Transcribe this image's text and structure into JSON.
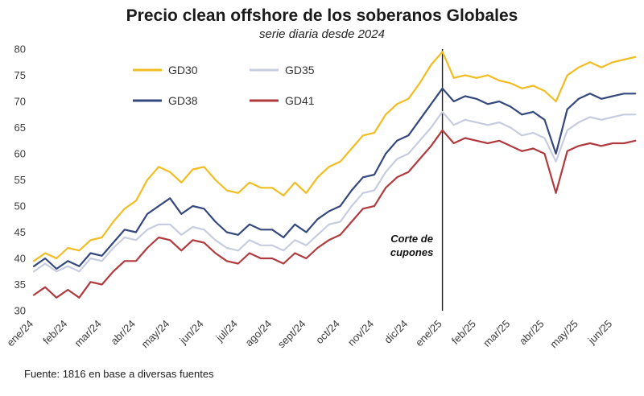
{
  "source_note": "Fuente: 1816 en base a diversas fuentes",
  "chart_data": {
    "type": "line",
    "title": "Precio clean offshore de los soberanos Globales",
    "subtitle": "serie diaria desde 2024",
    "xlabel": "",
    "ylabel": "",
    "ylim": [
      30,
      80
    ],
    "y_ticks": [
      30,
      35,
      40,
      45,
      50,
      55,
      60,
      65,
      70,
      75,
      80
    ],
    "grid": false,
    "legend_position": "top-left-inside",
    "x_tick_labels": [
      "ene/24",
      "feb/24",
      "mar/24",
      "abr/24",
      "may/24",
      "jun/24",
      "jul/24",
      "ago/24",
      "sept/24",
      "oct/24",
      "nov/24",
      "dic/24",
      "ene/25",
      "feb/25",
      "mar/25",
      "abr/25",
      "may/25",
      "jun/25"
    ],
    "points_per_month": 3,
    "annotation": {
      "line1": "Corte de",
      "line2": "cupones",
      "x_index": 12
    },
    "annotation_line_color": "#1a1a1a",
    "series": [
      {
        "name": "GD30",
        "color": "#F2BD22",
        "values": [
          39.5,
          41,
          40,
          42,
          41.5,
          43.5,
          44,
          47,
          49.5,
          51,
          55,
          57.5,
          56.5,
          54.5,
          57,
          57.5,
          55,
          53,
          52.5,
          54.5,
          53.5,
          53.5,
          52,
          54.5,
          52.5,
          55.5,
          57.5,
          58.5,
          61,
          63.5,
          64,
          67.5,
          69.5,
          70.5,
          73.5,
          77,
          79.5,
          74.5,
          75,
          74.5,
          75,
          74,
          73.5,
          72.5,
          73,
          72,
          70,
          75,
          76.5,
          77.5,
          76.5,
          77.5,
          78,
          78.5
        ]
      },
      {
        "name": "GD35",
        "color": "#C7CCDF",
        "values": [
          37.5,
          39,
          37.5,
          38.5,
          37.5,
          40,
          39.5,
          42,
          44,
          43.5,
          45.5,
          46.5,
          46.5,
          44.5,
          46,
          45.5,
          43.5,
          42,
          41.5,
          43.5,
          42.5,
          42.5,
          41.5,
          43.5,
          42.5,
          44.5,
          46.5,
          47,
          50,
          52.5,
          53,
          56.5,
          59,
          60,
          62.5,
          65,
          68,
          65.5,
          66.5,
          66,
          65.5,
          66,
          65,
          63.5,
          64,
          63,
          58.5,
          64.5,
          66,
          67,
          66.5,
          67,
          67.5,
          67.5
        ]
      },
      {
        "name": "GD38",
        "color": "#34487D",
        "values": [
          38.5,
          40,
          38,
          39.5,
          38.5,
          41,
          40.5,
          43,
          45.5,
          45,
          48.5,
          50,
          51.5,
          48.5,
          50,
          49.5,
          47,
          45,
          44.5,
          46.5,
          45.5,
          45.5,
          44,
          46.5,
          45,
          47.5,
          49,
          50,
          53,
          55.5,
          56,
          60,
          62.5,
          63.5,
          66.5,
          69.5,
          72.5,
          70,
          71,
          70.5,
          69.5,
          70,
          69,
          67.5,
          68,
          66.5,
          60,
          68.5,
          70.5,
          71.5,
          70.5,
          71,
          71.5,
          71.5
        ]
      },
      {
        "name": "GD41",
        "color": "#B13A3E",
        "values": [
          33,
          34.5,
          32.5,
          34,
          32.5,
          35.5,
          35,
          37.5,
          39.5,
          39.5,
          42,
          44,
          43.5,
          41.5,
          43.5,
          43,
          41,
          39.5,
          39,
          41,
          40,
          40,
          39,
          41,
          40,
          42,
          43.5,
          44.5,
          47,
          49.5,
          50,
          53.5,
          55.5,
          56.5,
          59,
          61.5,
          64.5,
          62,
          63,
          62.5,
          62,
          62.5,
          61.5,
          60.5,
          61,
          60,
          52.5,
          60.5,
          61.5,
          62,
          61.5,
          62,
          62,
          62.5
        ]
      }
    ]
  }
}
